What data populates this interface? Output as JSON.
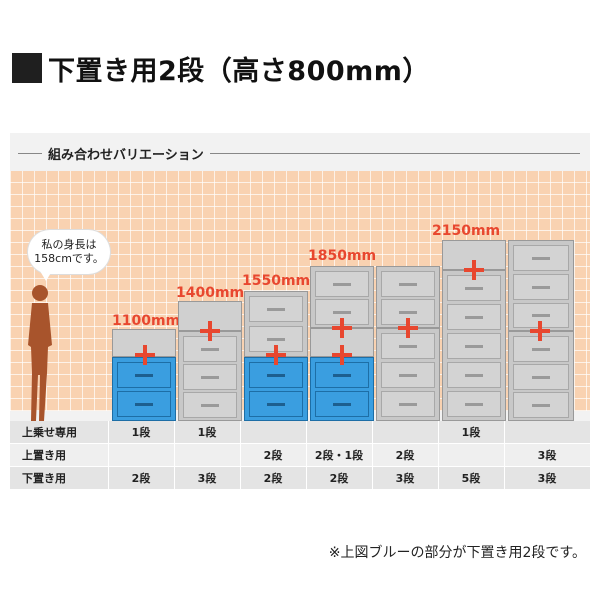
{
  "title": "下置き用2段（高さ800mm）",
  "panel_heading": "組み合わせバリエーション",
  "bubble": {
    "line1": "私の身長は",
    "line2": "158cmです。"
  },
  "heights": {
    "h1100": "1100mm",
    "h1400": "1400mm",
    "h1550": "1550mm",
    "h1850": "1850mm",
    "h2150": "2150mm"
  },
  "table": {
    "rows": [
      {
        "label": "上乗せ専用",
        "cells": [
          "1段",
          "1段",
          "",
          "",
          "",
          "1段",
          ""
        ]
      },
      {
        "label": "上置き用",
        "cells": [
          "",
          "",
          "2段",
          "2段・1段",
          "2段",
          "",
          "3段"
        ]
      },
      {
        "label": "下置き用",
        "cells": [
          "2段",
          "3段",
          "2段",
          "2段",
          "3段",
          "5段",
          "3段"
        ]
      }
    ]
  },
  "note": "※上図ブルーの部分が下置き用2段です。",
  "colors": {
    "accent": "#e8472f",
    "blue": "#3a9ee0",
    "wall": "#f9d2b1",
    "cabinet": "#c8c8c8"
  }
}
